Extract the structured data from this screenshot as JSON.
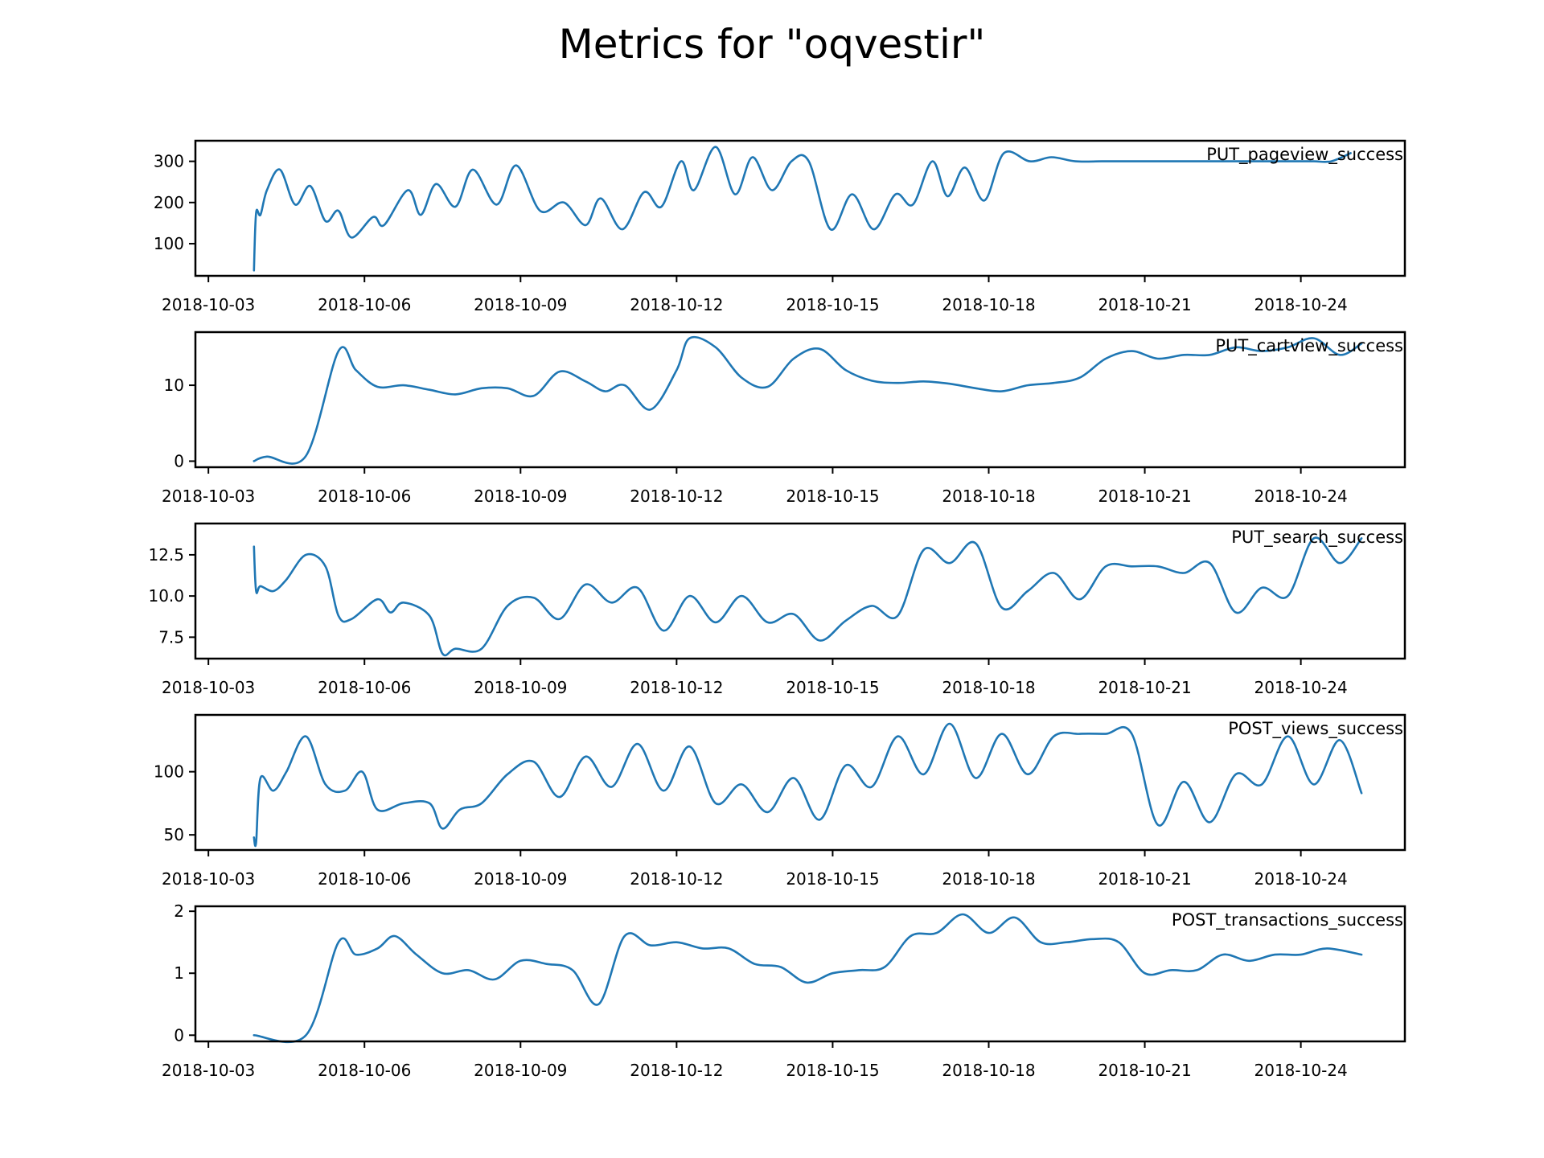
{
  "chart_data": {
    "type": "line",
    "title": "Metrics for \"oqvestir\"",
    "color": "#1f77b4",
    "x_tick_labels": [
      "2018-10-03",
      "2018-10-06",
      "2018-10-09",
      "2018-10-12",
      "2018-10-15",
      "2018-10-18",
      "2018-10-21",
      "2018-10-24"
    ],
    "x_range": [
      "2018-10-02 18:00",
      "2018-10-26 00:00"
    ],
    "panels": [
      {
        "name": "PUT_pageview_success",
        "ylim": [
          22,
          350
        ],
        "yticks": [
          100,
          200,
          300
        ],
        "ytick_labels": [
          "100",
          "200",
          "300"
        ],
        "x": [
          "2018-10-03 21:00",
          "2018-10-03 22:00",
          "2018-10-04 00:00",
          "2018-10-04 03:00",
          "2018-10-04 09:00",
          "2018-10-04 16:00",
          "2018-10-04 23:00",
          "2018-10-05 06:00",
          "2018-10-05 12:00",
          "2018-10-05 18:00",
          "2018-10-06 04:00",
          "2018-10-06 09:00",
          "2018-10-06 20:00",
          "2018-10-07 02:00",
          "2018-10-07 09:00",
          "2018-10-07 18:00",
          "2018-10-08 02:00",
          "2018-10-08 13:00",
          "2018-10-08 22:00",
          "2018-10-09 09:00",
          "2018-10-09 20:00",
          "2018-10-10 06:00",
          "2018-10-10 13:00",
          "2018-10-10 23:00",
          "2018-10-11 09:00",
          "2018-10-11 17:00",
          "2018-10-12 02:00",
          "2018-10-12 08:00",
          "2018-10-12 18:00",
          "2018-10-13 03:00",
          "2018-10-13 11:00",
          "2018-10-13 20:00",
          "2018-10-14 05:00",
          "2018-10-14 13:00",
          "2018-10-14 23:00",
          "2018-10-15 09:00",
          "2018-10-15 19:00",
          "2018-10-16 05:00",
          "2018-10-16 13:00",
          "2018-10-16 22:00",
          "2018-10-17 05:00",
          "2018-10-17 13:00",
          "2018-10-17 22:00",
          "2018-10-18 07:00",
          "2018-10-18 19:00",
          "2018-10-19 05:00",
          "2018-10-19 16:00",
          "2018-10-20 04:00",
          "2018-10-20 14:00",
          "2018-10-21 00:00",
          "2018-10-21 12:00",
          "2018-10-21 23:00",
          "2018-10-22 09:00",
          "2018-10-22 20:00",
          "2018-10-23 04:00",
          "2018-10-23 13:00",
          "2018-10-23 21:00",
          "2018-10-24 06:00",
          "2018-10-24 14:00",
          "2018-10-24 23:00"
        ],
        "values": [
          35,
          175,
          170,
          230,
          280,
          195,
          240,
          155,
          180,
          115,
          165,
          145,
          230,
          170,
          245,
          190,
          280,
          195,
          290,
          180,
          200,
          145,
          210,
          135,
          225,
          190,
          300,
          230,
          335,
          220,
          310,
          230,
          300,
          300,
          135,
          220,
          135,
          220,
          195,
          300,
          215,
          285,
          205,
          320,
          300,
          310,
          300,
          300,
          300,
          300,
          300,
          300,
          300,
          300,
          300,
          300,
          300,
          300,
          300,
          320
        ],
        "note": "approximate"
      },
      {
        "name": "PUT_cartview_success",
        "ylim": [
          -0.8,
          17
        ],
        "yticks": [
          0,
          10
        ],
        "ytick_labels": [
          "0",
          "10"
        ],
        "x": [
          "2018-10-03 21:00",
          "2018-10-04 03:00",
          "2018-10-04 21:00",
          "2018-10-05 12:00",
          "2018-10-05 20:00",
          "2018-10-06 06:00",
          "2018-10-06 18:00",
          "2018-10-07 06:00",
          "2018-10-07 18:00",
          "2018-10-08 06:00",
          "2018-10-08 18:00",
          "2018-10-09 06:00",
          "2018-10-09 18:00",
          "2018-10-10 06:00",
          "2018-10-10 15:00",
          "2018-10-11 00:00",
          "2018-10-11 12:00",
          "2018-10-12 00:00",
          "2018-10-12 06:00",
          "2018-10-12 18:00",
          "2018-10-13 06:00",
          "2018-10-13 18:00",
          "2018-10-14 06:00",
          "2018-10-14 18:00",
          "2018-10-15 06:00",
          "2018-10-15 18:00",
          "2018-10-16 06:00",
          "2018-10-16 18:00",
          "2018-10-17 06:00",
          "2018-10-17 18:00",
          "2018-10-18 06:00",
          "2018-10-18 18:00",
          "2018-10-19 06:00",
          "2018-10-19 18:00",
          "2018-10-20 06:00",
          "2018-10-20 18:00",
          "2018-10-21 06:00",
          "2018-10-21 18:00",
          "2018-10-22 06:00",
          "2018-10-22 18:00",
          "2018-10-23 06:00",
          "2018-10-23 18:00",
          "2018-10-24 06:00",
          "2018-10-24 18:00",
          "2018-10-25 04:00"
        ],
        "values": [
          0,
          0.6,
          0.7,
          14.5,
          12,
          9.8,
          10,
          9.4,
          8.8,
          9.6,
          9.6,
          8.6,
          11.8,
          10.5,
          9.2,
          10,
          6.8,
          12,
          16.2,
          15,
          11,
          9.8,
          13.5,
          14.8,
          12,
          10.6,
          10.3,
          10.5,
          10.2,
          9.6,
          9.2,
          10,
          10.3,
          11,
          13.5,
          14.5,
          13.5,
          14,
          14,
          15,
          14.5,
          15,
          16.2,
          14,
          15.5
        ],
        "note": "approximate"
      },
      {
        "name": "PUT_search_success",
        "ylim": [
          6.2,
          14.4
        ],
        "yticks": [
          7.5,
          10.0,
          12.5
        ],
        "ytick_labels": [
          "7.5",
          "10.0",
          "12.5"
        ],
        "x": [
          "2018-10-03 21:00",
          "2018-10-03 22:00",
          "2018-10-04 00:00",
          "2018-10-04 06:00",
          "2018-10-04 12:00",
          "2018-10-04 21:00",
          "2018-10-05 06:00",
          "2018-10-05 12:00",
          "2018-10-05 18:00",
          "2018-10-06 06:00",
          "2018-10-06 12:00",
          "2018-10-06 18:00",
          "2018-10-07 06:00",
          "2018-10-07 12:00",
          "2018-10-07 18:00",
          "2018-10-08 06:00",
          "2018-10-08 18:00",
          "2018-10-09 06:00",
          "2018-10-09 18:00",
          "2018-10-10 06:00",
          "2018-10-10 18:00",
          "2018-10-11 06:00",
          "2018-10-11 18:00",
          "2018-10-12 06:00",
          "2018-10-12 18:00",
          "2018-10-13 06:00",
          "2018-10-13 18:00",
          "2018-10-14 06:00",
          "2018-10-14 18:00",
          "2018-10-15 06:00",
          "2018-10-15 18:00",
          "2018-10-16 06:00",
          "2018-10-16 18:00",
          "2018-10-17 06:00",
          "2018-10-17 18:00",
          "2018-10-18 06:00",
          "2018-10-18 18:00",
          "2018-10-19 06:00",
          "2018-10-19 18:00",
          "2018-10-20 06:00",
          "2018-10-20 18:00",
          "2018-10-21 06:00",
          "2018-10-21 18:00",
          "2018-10-22 06:00",
          "2018-10-22 18:00",
          "2018-10-23 06:00",
          "2018-10-23 18:00",
          "2018-10-24 06:00",
          "2018-10-24 18:00",
          "2018-10-25 04:00"
        ],
        "values": [
          13,
          10.3,
          10.6,
          10.3,
          11,
          12.5,
          11.8,
          8.8,
          8.6,
          9.8,
          9,
          9.6,
          8.8,
          6.5,
          6.8,
          6.8,
          9.4,
          9.9,
          8.6,
          10.7,
          9.6,
          10.5,
          7.9,
          10,
          8.4,
          10,
          8.4,
          8.9,
          7.3,
          8.5,
          9.4,
          8.8,
          12.8,
          12,
          13.2,
          9.3,
          10.3,
          11.4,
          9.8,
          11.8,
          11.8,
          11.8,
          11.4,
          12,
          9,
          10.5,
          10,
          13.5,
          12,
          13.5
        ],
        "note": "approximate"
      },
      {
        "name": "POST_views_success",
        "ylim": [
          38,
          145
        ],
        "yticks": [
          50,
          100
        ],
        "ytick_labels": [
          "50",
          "100"
        ],
        "x": [
          "2018-10-03 21:00",
          "2018-10-03 22:00",
          "2018-10-04 00:00",
          "2018-10-04 06:00",
          "2018-10-04 12:00",
          "2018-10-04 21:00",
          "2018-10-05 06:00",
          "2018-10-05 15:00",
          "2018-10-05 23:00",
          "2018-10-06 06:00",
          "2018-10-06 18:00",
          "2018-10-07 06:00",
          "2018-10-07 12:00",
          "2018-10-07 20:00",
          "2018-10-08 06:00",
          "2018-10-08 18:00",
          "2018-10-09 06:00",
          "2018-10-09 18:00",
          "2018-10-10 06:00",
          "2018-10-10 18:00",
          "2018-10-11 06:00",
          "2018-10-11 18:00",
          "2018-10-12 06:00",
          "2018-10-12 18:00",
          "2018-10-13 06:00",
          "2018-10-13 18:00",
          "2018-10-14 06:00",
          "2018-10-14 18:00",
          "2018-10-15 06:00",
          "2018-10-15 18:00",
          "2018-10-16 06:00",
          "2018-10-16 18:00",
          "2018-10-17 06:00",
          "2018-10-17 18:00",
          "2018-10-18 06:00",
          "2018-10-18 18:00",
          "2018-10-19 06:00",
          "2018-10-19 18:00",
          "2018-10-20 06:00",
          "2018-10-20 18:00",
          "2018-10-21 06:00",
          "2018-10-21 18:00",
          "2018-10-22 06:00",
          "2018-10-22 18:00",
          "2018-10-23 06:00",
          "2018-10-23 18:00",
          "2018-10-24 06:00",
          "2018-10-24 18:00",
          "2018-10-25 04:00"
        ],
        "values": [
          48,
          44,
          95,
          85,
          100,
          128,
          90,
          85,
          100,
          70,
          75,
          75,
          55,
          70,
          75,
          98,
          108,
          80,
          112,
          88,
          122,
          85,
          120,
          75,
          90,
          68,
          95,
          62,
          105,
          88,
          128,
          98,
          138,
          95,
          130,
          98,
          128,
          130,
          130,
          130,
          58,
          92,
          60,
          98,
          90,
          128,
          90,
          125,
          83
        ],
        "note": "approximate"
      },
      {
        "name": "POST_transactions_success",
        "ylim": [
          -0.1,
          2.08
        ],
        "yticks": [
          0,
          1,
          2
        ],
        "ytick_labels": [
          "0",
          "1",
          "2"
        ],
        "x": [
          "2018-10-03 21:00",
          "2018-10-04 21:00",
          "2018-10-05 12:00",
          "2018-10-05 20:00",
          "2018-10-06 06:00",
          "2018-10-06 14:00",
          "2018-10-07 00:00",
          "2018-10-07 12:00",
          "2018-10-08 00:00",
          "2018-10-08 12:00",
          "2018-10-09 00:00",
          "2018-10-09 12:00",
          "2018-10-10 00:00",
          "2018-10-10 12:00",
          "2018-10-11 00:00",
          "2018-10-11 12:00",
          "2018-10-12 00:00",
          "2018-10-12 12:00",
          "2018-10-13 00:00",
          "2018-10-13 12:00",
          "2018-10-14 00:00",
          "2018-10-14 12:00",
          "2018-10-15 00:00",
          "2018-10-15 12:00",
          "2018-10-16 00:00",
          "2018-10-16 12:00",
          "2018-10-17 00:00",
          "2018-10-17 12:00",
          "2018-10-18 00:00",
          "2018-10-18 12:00",
          "2018-10-19 00:00",
          "2018-10-19 12:00",
          "2018-10-20 00:00",
          "2018-10-20 12:00",
          "2018-10-21 00:00",
          "2018-10-21 12:00",
          "2018-10-22 00:00",
          "2018-10-22 12:00",
          "2018-10-23 00:00",
          "2018-10-23 12:00",
          "2018-10-24 00:00",
          "2018-10-24 12:00",
          "2018-10-25 04:00"
        ],
        "values": [
          0,
          0,
          1.5,
          1.3,
          1.4,
          1.6,
          1.3,
          1,
          1.05,
          0.9,
          1.2,
          1.15,
          1.05,
          0.5,
          1.6,
          1.45,
          1.5,
          1.4,
          1.4,
          1.15,
          1.1,
          0.85,
          1,
          1.05,
          1.1,
          1.6,
          1.65,
          1.95,
          1.65,
          1.9,
          1.5,
          1.5,
          1.55,
          1.5,
          1,
          1.05,
          1.05,
          1.3,
          1.2,
          1.3,
          1.3,
          1.4,
          1.3
        ],
        "note": "approximate"
      }
    ]
  }
}
